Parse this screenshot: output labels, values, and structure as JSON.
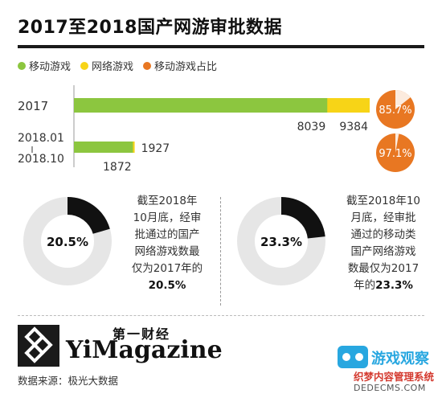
{
  "title": "2017至2018国产网游审批数据",
  "legend": {
    "mobile": "移动游戏",
    "online": "网络游戏",
    "share": "移动游戏占比"
  },
  "colors": {
    "mobile": "#8cc63f",
    "online": "#f7d417",
    "share": "#e87722",
    "donut_dark": "#111111",
    "donut_light": "#e6e6e6"
  },
  "chart_data": [
    {
      "type": "bar",
      "categories": [
        "2017",
        "2018.01\n-\n2018.10"
      ],
      "category_labels": [
        [
          "2017"
        ],
        [
          "2018.01",
          "2018.10"
        ]
      ],
      "series": [
        {
          "name": "移动游戏",
          "values": [
            8039,
            1872
          ]
        },
        {
          "name": "网络游戏",
          "values": [
            9384,
            1927
          ]
        }
      ],
      "value_labels": {
        "mobile": [
          "8039",
          "1872"
        ],
        "online": [
          "9384",
          "1927"
        ]
      },
      "share_labels": [
        "85.7%",
        "97.1%"
      ],
      "share_values": [
        85.7,
        97.1
      ],
      "xlim": [
        0,
        9384
      ]
    },
    {
      "type": "pie",
      "label": "20.5%",
      "value": 20.5
    },
    {
      "type": "pie",
      "label": "23.3%",
      "value": 23.3
    }
  ],
  "desc_left": {
    "lines": [
      "截至2018年",
      "10月底，经审",
      "批通过的国产",
      "网络游戏数最",
      "仅为2017年的"
    ],
    "highlight": "20.5%"
  },
  "desc_right": {
    "lines": [
      "截至2018年10",
      "月底，经审批",
      "通过的移动类",
      "国产网络游戏",
      "数最仅为2017"
    ],
    "tail": "年的",
    "highlight": "23.3%"
  },
  "logo": {
    "cn": "第一财经",
    "en": "YiMagazine"
  },
  "source": "数据来源：极光大数据",
  "watermark": {
    "title": "游戏观察",
    "subtitle": "织梦内容管理系统",
    "url": "DEDECMS.COM"
  }
}
